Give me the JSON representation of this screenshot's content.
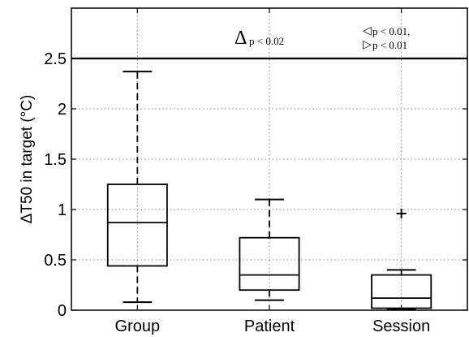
{
  "chart_data": {
    "type": "boxplot",
    "ylabel": "ΔT50 in target (°C)",
    "ylim": [
      0,
      3
    ],
    "yticks": [
      "0",
      "0.5",
      "1",
      "1.5",
      "2",
      "2.5"
    ],
    "grid": true,
    "categories": [
      "Group",
      "Patient",
      "Session"
    ],
    "boxes": [
      {
        "name": "Group",
        "whisker_low": 0.08,
        "q1": 0.44,
        "median": 0.87,
        "q3": 1.25,
        "whisker_high": 2.37,
        "outliers": []
      },
      {
        "name": "Patient",
        "whisker_low": 0.1,
        "q1": 0.2,
        "median": 0.35,
        "q3": 0.72,
        "whisker_high": 1.1,
        "outliers": []
      },
      {
        "name": "Session",
        "whisker_low": 0.01,
        "q1": 0.02,
        "median": 0.12,
        "q3": 0.35,
        "whisker_high": 0.4,
        "outliers": [
          0.96
        ]
      }
    ],
    "reference_line": {
      "y": 2.5
    },
    "annotations": [
      {
        "symbol": "Δ",
        "text": "p < 0.02"
      },
      {
        "symbol": "◁",
        "text": "p < 0.01,"
      },
      {
        "symbol": "▷",
        "text": "p < 0.01"
      }
    ]
  }
}
